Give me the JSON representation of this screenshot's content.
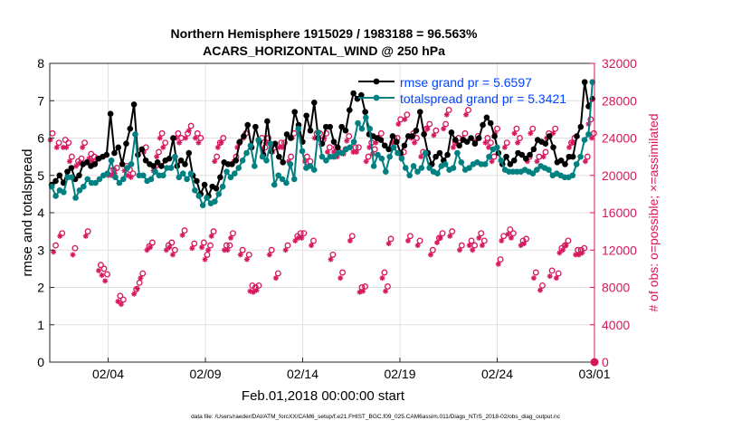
{
  "chart_data": {
    "type": "line",
    "title_line1": "Northern Hemisphere 1915029 / 1983188 = 96.563%",
    "title_line2": "ACARS_HORIZONTAL_WIND @ 250 hPa",
    "xlabel": "Feb.01,2018 00:00:00 start",
    "ylabel_left": "rmse and totalspread",
    "ylabel_right": "# of obs: o=possible; ×=assimilated",
    "footer": "data file: /Users/raeder/DAI/ATM_forcXX/CAM6_setup/f.e21.FHIST_BGC.f09_025.CAM6assim.011/Diags_NTrS_2018-02/obs_diag_output.nc",
    "xlim": [
      1,
      29
    ],
    "ylim_left": [
      0,
      8
    ],
    "ylim_right": [
      0,
      32000
    ],
    "x_ticks": [
      {
        "x": 4,
        "label": "02/04"
      },
      {
        "x": 9,
        "label": "02/09"
      },
      {
        "x": 14,
        "label": "02/14"
      },
      {
        "x": 19,
        "label": "02/19"
      },
      {
        "x": 24,
        "label": "02/24"
      },
      {
        "x": 29,
        "label": "03/01"
      }
    ],
    "y_ticks_left": [
      "0",
      "1",
      "2",
      "3",
      "4",
      "5",
      "6",
      "7",
      "8"
    ],
    "y_ticks_right": [
      "0",
      "4000",
      "8000",
      "12000",
      "16000",
      "20000",
      "24000",
      "28000",
      "32000"
    ],
    "colors": {
      "rmse": "#000000",
      "spread": "#008080",
      "obs": "#d6175e",
      "legend_text": "#0044ff",
      "grid": "#e0e0e0",
      "axis": "#262626"
    },
    "series": [
      {
        "name": "rmse grand pr = 5.6597",
        "axis": "left",
        "values": [
          4.75,
          4.85,
          5.0,
          4.8,
          5.1,
          5.2,
          4.9,
          5.0,
          5.3,
          5.35,
          5.25,
          5.3,
          5.45,
          5.5,
          5.55,
          6.65,
          5.6,
          5.75,
          5.3,
          5.85,
          6.25,
          6.9,
          5.55,
          5.7,
          5.4,
          5.3,
          5.25,
          5.35,
          5.25,
          5.4,
          5.45,
          6.0,
          5.25,
          5.4,
          5.3,
          5.6,
          5.0,
          4.85,
          4.5,
          4.75,
          4.45,
          4.7,
          4.65,
          4.95,
          5.35,
          5.3,
          5.3,
          5.4,
          5.9,
          6.05,
          6.35,
          5.75,
          6.3,
          5.9,
          5.55,
          6.45,
          5.65,
          5.85,
          5.5,
          5.35,
          6.1,
          6.0,
          6.7,
          6.35,
          5.9,
          6.6,
          6.2,
          6.95,
          6.0,
          5.85,
          6.3,
          6.3,
          5.9,
          5.75,
          6.3,
          6.2,
          6.75,
          7.2,
          7.05,
          7.15,
          6.7,
          6.1,
          6.05,
          6.0,
          5.95,
          5.8,
          5.7,
          6.05,
          5.9,
          5.6,
          5.8,
          6.05,
          6.05,
          6.2,
          6.7,
          6.1,
          5.6,
          5.3,
          5.5,
          5.6,
          5.4,
          5.55,
          6.15,
          5.95,
          5.8,
          5.95,
          5.9,
          6.0,
          5.85,
          6.0,
          6.35,
          6.55,
          6.4,
          6.05,
          5.6,
          5.3,
          5.5,
          5.3,
          5.4,
          5.6,
          5.55,
          5.45,
          5.55,
          5.7,
          5.95,
          5.9,
          5.85,
          6.05,
          5.75,
          5.35,
          5.4,
          5.3,
          5.5,
          5.5,
          6.05,
          6.3,
          7.5,
          6.85,
          7.05
        ]
      },
      {
        "name": "totalspread grand pr = 5.3421",
        "axis": "left",
        "values": [
          4.7,
          4.45,
          4.6,
          4.55,
          4.95,
          4.95,
          4.4,
          4.6,
          4.7,
          4.9,
          4.8,
          4.8,
          4.9,
          5.0,
          5.05,
          5.4,
          4.95,
          4.8,
          4.9,
          5.2,
          5.3,
          6.1,
          5.0,
          5.0,
          4.85,
          4.9,
          5.1,
          5.0,
          5.0,
          5.2,
          5.2,
          5.5,
          4.95,
          5.05,
          4.9,
          5.05,
          4.6,
          4.45,
          4.2,
          4.4,
          4.25,
          4.3,
          4.5,
          4.7,
          5.1,
          4.95,
          5.05,
          5.2,
          5.4,
          5.6,
          5.8,
          5.25,
          5.95,
          5.5,
          5.4,
          5.85,
          4.75,
          5.0,
          4.9,
          4.8,
          5.3,
          4.9,
          6.25,
          5.65,
          5.2,
          5.25,
          5.15,
          6.15,
          5.5,
          5.4,
          5.5,
          5.5,
          5.6,
          5.6,
          5.7,
          5.75,
          5.9,
          6.4,
          6.25,
          6.55,
          6.25,
          5.25,
          5.55,
          5.45,
          5.1,
          5.5,
          5.75,
          5.6,
          5.45,
          5.2,
          5.0,
          5.25,
          5.1,
          5.2,
          5.6,
          5.2,
          5.1,
          5.05,
          5.25,
          5.3,
          5.15,
          5.2,
          5.6,
          5.35,
          5.15,
          5.2,
          5.3,
          5.35,
          5.3,
          5.3,
          5.5,
          5.7,
          5.75,
          5.4,
          5.15,
          5.1,
          5.1,
          5.1,
          5.1,
          5.15,
          5.1,
          5.05,
          5.15,
          5.25,
          5.2,
          5.15,
          5.0,
          5.05,
          5.0,
          4.95,
          4.95,
          5.0,
          5.3,
          5.5,
          5.95,
          6.1,
          7.5
        ]
      },
      {
        "name": "obs possible",
        "axis": "right",
        "values": [
          24500,
          12500,
          23500,
          13800,
          23800,
          23500,
          22000,
          12200,
          21500,
          21800,
          23500,
          14000,
          22300,
          22000,
          21800,
          10400,
          10000,
          9400,
          20500,
          20600,
          20800,
          7100,
          6700,
          21000,
          20600,
          20200,
          7800,
          8500,
          9500,
          23000,
          12400,
          12800,
          21000,
          22500,
          24500,
          23500,
          12500,
          12800,
          12000,
          24500,
          24000,
          14100,
          24500,
          25300,
          12700,
          24500,
          24000,
          12800,
          11500,
          12500,
          14000,
          22000,
          23500,
          24000,
          12500,
          12500,
          13800,
          22000,
          23500,
          12000,
          24500,
          11500,
          8200,
          8000,
          8200,
          24000,
          23000,
          24000,
          12000,
          23000,
          9500,
          23500,
          23500,
          12500,
          22000,
          24500,
          13500,
          13800,
          13800,
          22000,
          21500,
          13000,
          24500,
          24500,
          23800,
          24500,
          23000,
          11500,
          23000,
          22500,
          9600,
          22800,
          24200,
          13500,
          23000,
          23000,
          8000,
          8100,
          22000,
          23500,
          22800,
          24000,
          24500,
          9600,
          8100,
          13200,
          24000,
          24000,
          26000,
          22500,
          26500,
          13500,
          24500,
          24000,
          13000,
          22500,
          25000,
          25500,
          12000,
          24800,
          13300,
          13800,
          25500,
          27000,
          14000,
          23500,
          24000,
          12500,
          24500,
          27000,
          13000,
          12500,
          24200,
          13800,
          13000,
          24000,
          23500,
          22000,
          25000,
          11000,
          13500,
          23500,
          14200,
          13800,
          25000,
          24000,
          13000,
          13200,
          22000,
          25000,
          9600,
          22000,
          8200,
          22500,
          24500,
          9800,
          25000,
          9500,
          12200,
          12500,
          13000,
          23500,
          24000,
          12000,
          12000,
          12200,
          22000,
          26000,
          24500
        ]
      },
      {
        "name": "obs assimilated",
        "axis": "right",
        "values": [
          23800,
          11800,
          23000,
          13500,
          23000,
          23000,
          21500,
          11500,
          21000,
          21300,
          23000,
          13500,
          21800,
          21500,
          21300,
          9800,
          9300,
          8700,
          20000,
          20000,
          20200,
          6500,
          6200,
          20500,
          20000,
          19800,
          7300,
          7900,
          9000,
          22500,
          12000,
          12300,
          20500,
          22000,
          24000,
          23000,
          12000,
          12300,
          11500,
          24000,
          23500,
          13600,
          24000,
          24800,
          12200,
          24000,
          23500,
          12300,
          11000,
          12000,
          13500,
          21500,
          23000,
          23500,
          12000,
          12000,
          13300,
          21500,
          23000,
          11500,
          24000,
          11000,
          7600,
          7500,
          7700,
          23500,
          22500,
          23500,
          11500,
          22500,
          9000,
          23000,
          23000,
          12000,
          21500,
          24000,
          13000,
          13300,
          13300,
          21500,
          21000,
          12500,
          24000,
          24000,
          23300,
          24000,
          22500,
          11000,
          22500,
          22000,
          9000,
          22300,
          23700,
          13000,
          22500,
          22500,
          7500,
          7600,
          21500,
          23000,
          22300,
          23500,
          24000,
          9000,
          7600,
          12700,
          23500,
          23500,
          25500,
          22000,
          26000,
          13000,
          24000,
          23500,
          12500,
          22000,
          24500,
          25000,
          11500,
          24300,
          12800,
          13300,
          25000,
          26500,
          13500,
          23000,
          23500,
          12000,
          24000,
          26500,
          12500,
          12000,
          23700,
          13300,
          12500,
          23500,
          23000,
          21500,
          24500,
          10500,
          13000,
          23000,
          13700,
          13300,
          24500,
          23500,
          12500,
          12700,
          21500,
          24500,
          9000,
          21500,
          7700,
          22000,
          24000,
          9200,
          24500,
          9000,
          11700,
          12000,
          12500,
          23000,
          23500,
          11500,
          11500,
          11700,
          21500,
          25500,
          24000
        ]
      },
      {
        "name": "obs endpoint",
        "axis": "right",
        "values": [
          0
        ]
      }
    ]
  }
}
